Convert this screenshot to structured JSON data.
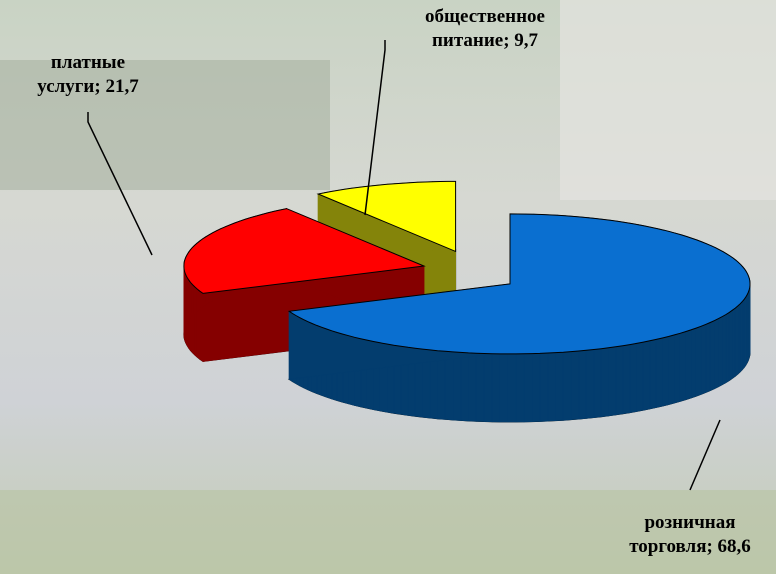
{
  "chart_data": {
    "type": "pie3d",
    "categories": [
      "розничная торговля",
      "платные услуги",
      "общественное питание"
    ],
    "values": [
      68.6,
      21.7,
      9.7
    ],
    "value_labels": [
      "розничная торговля; 68,6",
      "платные услуги; 21,7",
      "общественное питание; 9,7"
    ],
    "colors": [
      "#0a6fd0",
      "#ff0000",
      "#ffff00"
    ],
    "side_colors": [
      "#033d6e",
      "#850000",
      "#84840a"
    ]
  }
}
